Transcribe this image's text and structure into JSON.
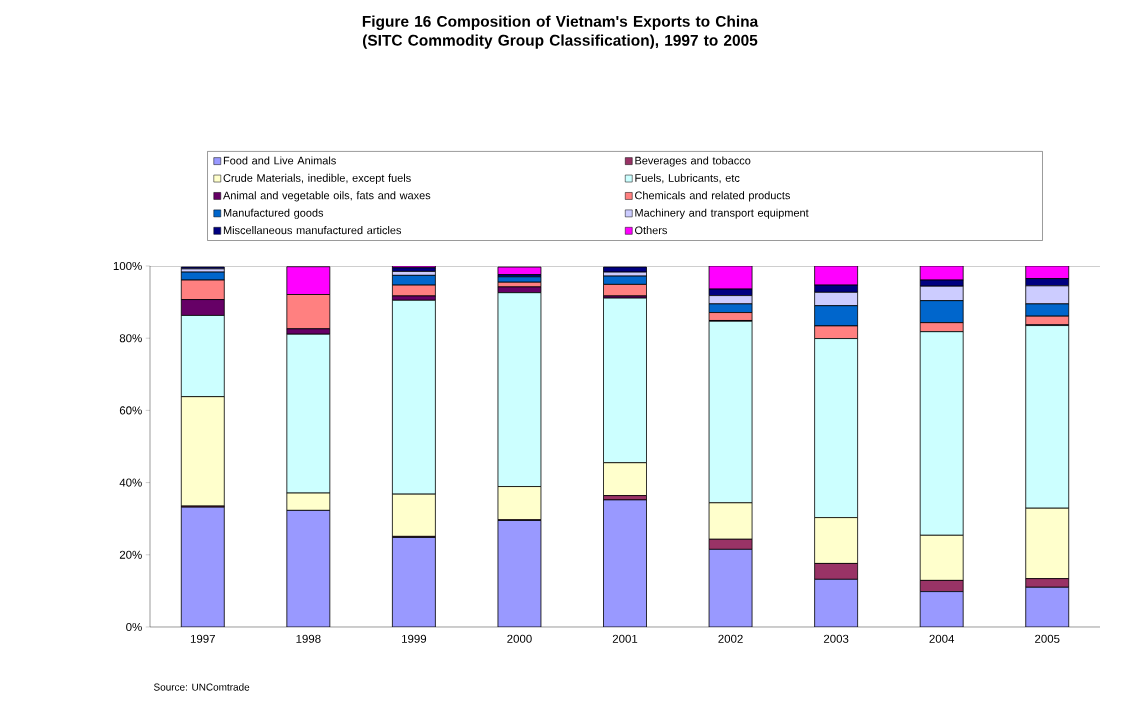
{
  "chart_data": {
    "type": "bar",
    "stacked": true,
    "title": "Figure 16     Composition of Vietnam's Exports to China (SITC Commodity Group Classification), 1997 to 2005",
    "categories": [
      "1997",
      "1998",
      "1999",
      "2000",
      "2001",
      "2002",
      "2003",
      "2004",
      "2005"
    ],
    "series": [
      {
        "name": "Food and Live Animals",
        "color": "#9999ff",
        "values": [
          33.2,
          32.3,
          24.8,
          29.5,
          35.2,
          21.5,
          13.2,
          9.8,
          11.0
        ]
      },
      {
        "name": "Beverages and tobacco",
        "color": "#993366",
        "values": [
          0.3,
          null,
          0.3,
          0.2,
          1.2,
          2.8,
          4.4,
          3.1,
          2.4
        ]
      },
      {
        "name": "Crude Materials, inedible, except fuels",
        "color": "#ffffcc",
        "values": [
          30.3,
          4.8,
          11.7,
          9.2,
          9.1,
          10.1,
          12.7,
          12.5,
          19.5
        ]
      },
      {
        "name": "Fuels, Lubricants, etc",
        "color": "#ccffff",
        "values": [
          22.5,
          44.0,
          53.7,
          53.7,
          45.6,
          50.3,
          49.6,
          56.4,
          50.6
        ]
      },
      {
        "name": "Animal and vegetable oils, fats and waxes",
        "color": "#660066",
        "values": [
          4.4,
          1.5,
          1.2,
          1.6,
          0.6,
          0.2,
          0,
          0,
          0.2
        ]
      },
      {
        "name": "Chemicals and related products",
        "color": "#ff8080",
        "values": [
          5.4,
          9.5,
          3.0,
          1.3,
          3.2,
          2.2,
          3.5,
          2.5,
          2.4
        ]
      },
      {
        "name": "Manufactured goods",
        "color": "#0066cc",
        "values": [
          2.2,
          0,
          2.7,
          1.5,
          2.3,
          2.4,
          5.6,
          6.1,
          3.4
        ]
      },
      {
        "name": "Machinery and transport equipment",
        "color": "#ccccff",
        "values": [
          0.9,
          0,
          1.1,
          null,
          1.1,
          2.3,
          3.7,
          4.0,
          5.0
        ]
      },
      {
        "name": "Miscellaneous manufactured articles",
        "color": "#000080",
        "values": [
          0.5,
          0,
          1.0,
          0.6,
          1.4,
          1.8,
          2.0,
          1.7,
          2.0
        ]
      },
      {
        "name": "Others",
        "color": "#ff00ff",
        "values": [
          null,
          7.7,
          0.5,
          2.1,
          null,
          6.4,
          5.3,
          3.9,
          3.5
        ]
      }
    ],
    "ylim": [
      0,
      100
    ],
    "yticks": [
      {
        "value": 0,
        "label": "0%"
      },
      {
        "value": 20,
        "label": "20%"
      },
      {
        "value": 40,
        "label": "40%"
      },
      {
        "value": 60,
        "label": "60%"
      },
      {
        "value": 80,
        "label": "80%"
      },
      {
        "value": 100,
        "label": "100%"
      }
    ],
    "legend": "top",
    "annotations": [
      "Source: UNComtrade"
    ]
  }
}
